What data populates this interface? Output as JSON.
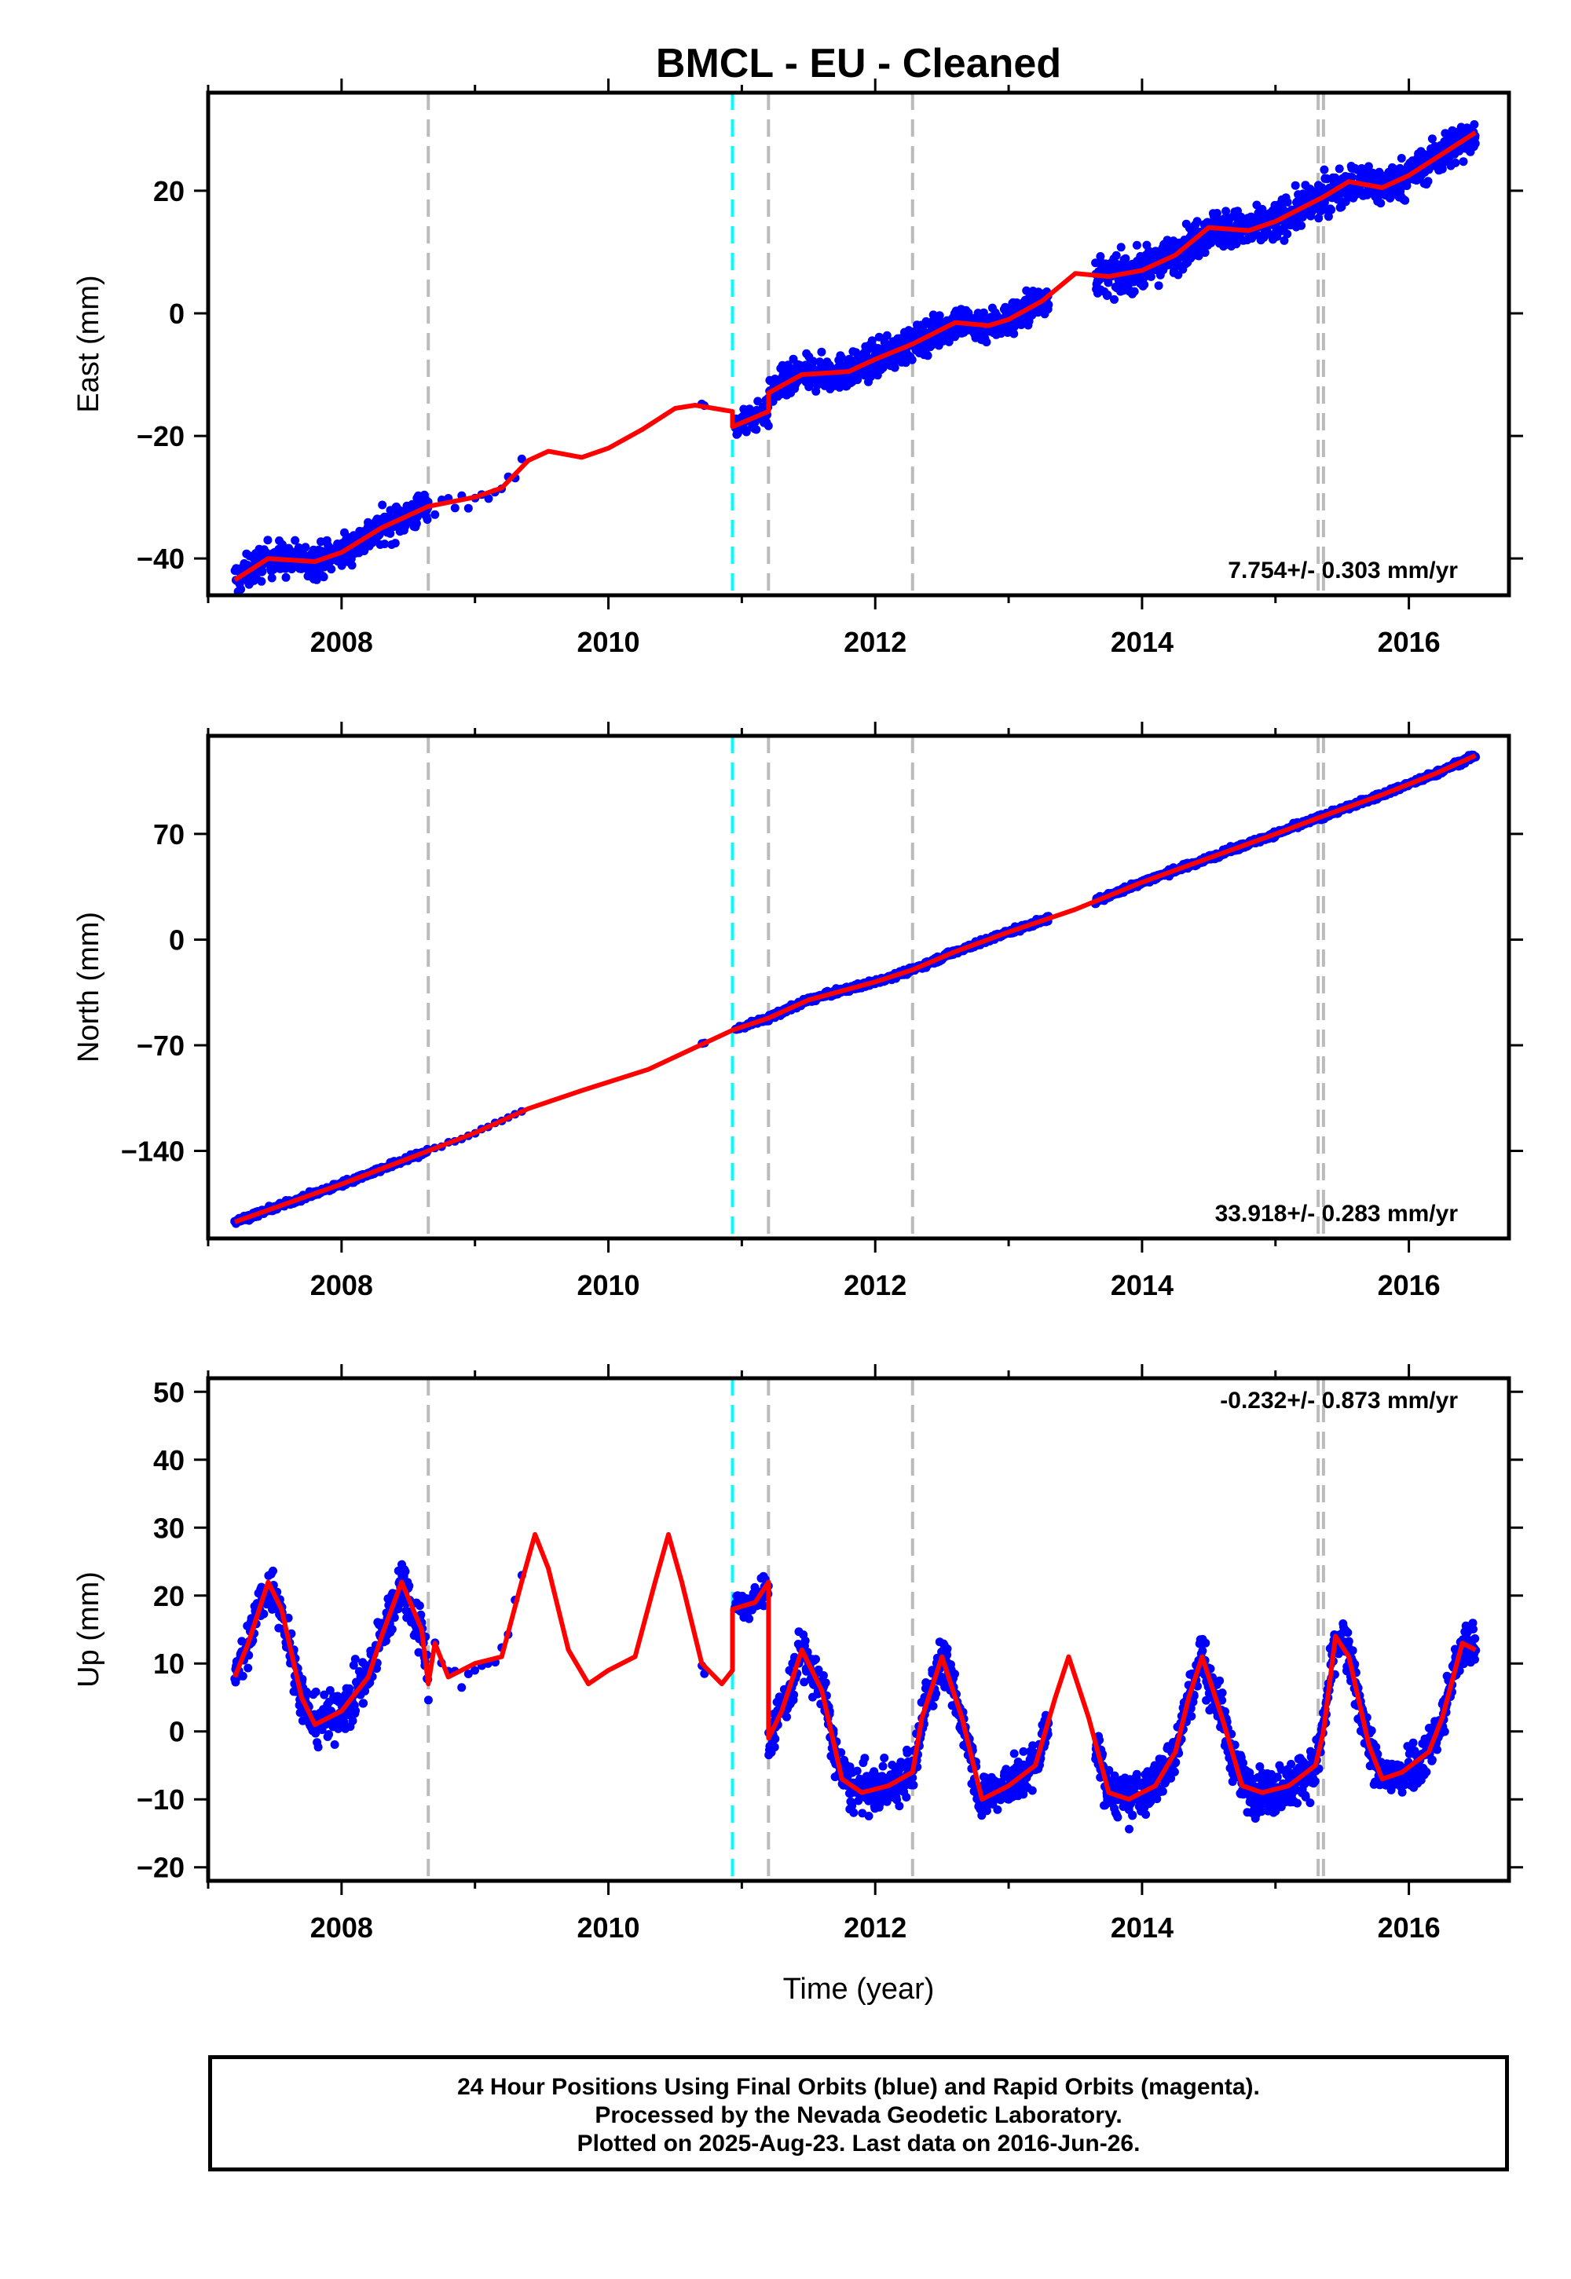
{
  "chart_data": {
    "title": "BMCL  - EU - Cleaned",
    "type": "scatter",
    "xlabel": "Time (year)",
    "xlim": [
      2007.0,
      2016.75
    ],
    "xticks": [
      2008,
      2010,
      2012,
      2014,
      2016
    ],
    "xtick_labels": [
      "2008",
      "2010",
      "2012",
      "2014",
      "2016"
    ],
    "event_lines": {
      "gray": [
        2008.65,
        2011.2,
        2012.28,
        2015.32,
        2015.36
      ],
      "cyan": [
        2010.93
      ]
    },
    "colors": {
      "final_orbits": "#0000ff",
      "model": "#ff0000",
      "equipment": "#bbbbbb",
      "earthquake": "#00ffff"
    },
    "panels": [
      {
        "name": "east",
        "ylabel": "East (mm)",
        "ylim": [
          -46,
          36
        ],
        "yticks": [
          -40,
          -20,
          0,
          20
        ],
        "ytick_labels": [
          "−40",
          "−20",
          "0",
          "20"
        ],
        "rate_label": "7.754+/- 0.303 mm/yr",
        "rate_position": "bottom-right",
        "model_line": [
          [
            2007.2,
            -43.5
          ],
          [
            2007.45,
            -40
          ],
          [
            2007.8,
            -40.5
          ],
          [
            2008.0,
            -39
          ],
          [
            2008.3,
            -35
          ],
          [
            2008.6,
            -32
          ],
          [
            2008.65,
            -31.5
          ],
          [
            2009.0,
            -30
          ],
          [
            2009.2,
            -28.5
          ],
          [
            2009.4,
            -24
          ],
          [
            2009.55,
            -22.5
          ],
          [
            2009.8,
            -23.5
          ],
          [
            2010.0,
            -22
          ],
          [
            2010.25,
            -19
          ],
          [
            2010.5,
            -15.5
          ],
          [
            2010.65,
            -15
          ],
          [
            2010.93,
            -16
          ],
          [
            2010.93,
            -18.5
          ],
          [
            2011.2,
            -16
          ],
          [
            2011.2,
            -13
          ],
          [
            2011.45,
            -10
          ],
          [
            2011.8,
            -9.5
          ],
          [
            2012.0,
            -7.5
          ],
          [
            2012.28,
            -5
          ],
          [
            2012.6,
            -1.5
          ],
          [
            2012.85,
            -2
          ],
          [
            2013.0,
            -1
          ],
          [
            2013.25,
            2
          ],
          [
            2013.5,
            6.5
          ],
          [
            2013.75,
            6
          ],
          [
            2014.0,
            7
          ],
          [
            2014.25,
            9.5
          ],
          [
            2014.5,
            14
          ],
          [
            2014.8,
            13.5
          ],
          [
            2015.0,
            15
          ],
          [
            2015.36,
            19
          ],
          [
            2015.55,
            21.5
          ],
          [
            2015.8,
            20.5
          ],
          [
            2016.0,
            22.5
          ],
          [
            2016.25,
            26
          ],
          [
            2016.5,
            29.5
          ]
        ],
        "observations": [
          {
            "start": 2007.2,
            "end": 2008.65,
            "density": 380,
            "spread": 4.5,
            "wave": 1.5
          },
          {
            "start": 2008.7,
            "end": 2009.35,
            "density": 14,
            "spread": 2.5,
            "wave": 1.0
          },
          {
            "start": 2010.7,
            "end": 2010.72,
            "density": 2,
            "spread": 1.5,
            "wave": 0
          },
          {
            "start": 2010.95,
            "end": 2011.2,
            "density": 60,
            "spread": 3.5,
            "wave": 1.0
          },
          {
            "start": 2011.2,
            "end": 2013.3,
            "density": 650,
            "spread": 4.5,
            "wave": 1.5
          },
          {
            "start": 2013.65,
            "end": 2016.5,
            "density": 900,
            "spread": 5.0,
            "wave": 1.5
          }
        ]
      },
      {
        "name": "north",
        "ylabel": "North (mm)",
        "ylim": [
          -198,
          135
        ],
        "yticks": [
          -140,
          -70,
          0,
          70
        ],
        "ytick_labels": [
          "−140",
          "−70",
          "0",
          "70"
        ],
        "rate_label": "33.918+/- 0.283 mm/yr",
        "rate_position": "bottom-right",
        "model_line": [
          [
            2007.2,
            -187
          ],
          [
            2008.0,
            -162
          ],
          [
            2008.65,
            -140
          ],
          [
            2009.0,
            -128
          ],
          [
            2009.4,
            -112
          ],
          [
            2009.8,
            -100
          ],
          [
            2010.3,
            -86
          ],
          [
            2010.93,
            -60
          ],
          [
            2011.2,
            -52
          ],
          [
            2011.5,
            -40
          ],
          [
            2012.0,
            -28
          ],
          [
            2012.28,
            -20
          ],
          [
            2012.6,
            -8
          ],
          [
            2013.0,
            5
          ],
          [
            2013.5,
            20
          ],
          [
            2014.0,
            38
          ],
          [
            2014.5,
            54
          ],
          [
            2015.0,
            70
          ],
          [
            2015.36,
            82
          ],
          [
            2015.8,
            96
          ],
          [
            2016.2,
            110
          ],
          [
            2016.5,
            122
          ]
        ],
        "observations": [
          {
            "start": 2007.2,
            "end": 2008.65,
            "density": 380,
            "spread": 3.0,
            "wave": 0.8
          },
          {
            "start": 2008.7,
            "end": 2009.35,
            "density": 14,
            "spread": 2.0,
            "wave": 0.5
          },
          {
            "start": 2010.7,
            "end": 2010.72,
            "density": 2,
            "spread": 1.5,
            "wave": 0
          },
          {
            "start": 2010.95,
            "end": 2011.2,
            "density": 60,
            "spread": 2.5,
            "wave": 0.8
          },
          {
            "start": 2011.2,
            "end": 2013.3,
            "density": 650,
            "spread": 3.0,
            "wave": 0.8
          },
          {
            "start": 2013.65,
            "end": 2016.5,
            "density": 900,
            "spread": 3.0,
            "wave": 0.8
          }
        ]
      },
      {
        "name": "up",
        "ylabel": "Up (mm)",
        "ylim": [
          -22,
          52
        ],
        "yticks": [
          -20,
          -10,
          0,
          10,
          20,
          30,
          40,
          50
        ],
        "ytick_labels": [
          "−20",
          "−10",
          "0",
          "10",
          "20",
          "30",
          "40",
          "50"
        ],
        "rate_label": "-0.232+/- 0.873 mm/yr",
        "rate_position": "top-right",
        "model_line": [
          [
            2007.2,
            8
          ],
          [
            2007.3,
            13
          ],
          [
            2007.45,
            22
          ],
          [
            2007.55,
            18
          ],
          [
            2007.7,
            5
          ],
          [
            2007.8,
            1
          ],
          [
            2008.0,
            3
          ],
          [
            2008.2,
            8
          ],
          [
            2008.3,
            14
          ],
          [
            2008.45,
            22
          ],
          [
            2008.6,
            15
          ],
          [
            2008.65,
            7
          ],
          [
            2008.7,
            13
          ],
          [
            2008.8,
            8
          ],
          [
            2009.0,
            10
          ],
          [
            2009.2,
            11
          ],
          [
            2009.35,
            22
          ],
          [
            2009.45,
            29
          ],
          [
            2009.55,
            24
          ],
          [
            2009.7,
            12
          ],
          [
            2009.85,
            7
          ],
          [
            2010.0,
            9
          ],
          [
            2010.2,
            11
          ],
          [
            2010.35,
            22
          ],
          [
            2010.45,
            29
          ],
          [
            2010.55,
            22
          ],
          [
            2010.7,
            10
          ],
          [
            2010.85,
            7
          ],
          [
            2010.93,
            9
          ],
          [
            2010.93,
            18
          ],
          [
            2011.1,
            19
          ],
          [
            2011.2,
            22
          ],
          [
            2011.2,
            -1
          ],
          [
            2011.3,
            3
          ],
          [
            2011.45,
            12
          ],
          [
            2011.6,
            6
          ],
          [
            2011.75,
            -7
          ],
          [
            2011.9,
            -9
          ],
          [
            2012.1,
            -8
          ],
          [
            2012.28,
            -6
          ],
          [
            2012.35,
            2
          ],
          [
            2012.5,
            11
          ],
          [
            2012.65,
            2
          ],
          [
            2012.8,
            -10
          ],
          [
            2013.0,
            -8
          ],
          [
            2013.2,
            -5
          ],
          [
            2013.35,
            5
          ],
          [
            2013.45,
            11
          ],
          [
            2013.6,
            2
          ],
          [
            2013.75,
            -9
          ],
          [
            2013.9,
            -10
          ],
          [
            2014.1,
            -8
          ],
          [
            2014.25,
            -3
          ],
          [
            2014.35,
            5
          ],
          [
            2014.45,
            11
          ],
          [
            2014.6,
            2
          ],
          [
            2014.75,
            -8
          ],
          [
            2014.9,
            -9
          ],
          [
            2015.1,
            -8
          ],
          [
            2015.3,
            -5
          ],
          [
            2015.36,
            0
          ],
          [
            2015.45,
            14
          ],
          [
            2015.55,
            11
          ],
          [
            2015.7,
            -2
          ],
          [
            2015.8,
            -7
          ],
          [
            2015.95,
            -6
          ],
          [
            2016.15,
            -3
          ],
          [
            2016.25,
            2
          ],
          [
            2016.4,
            13
          ],
          [
            2016.5,
            12
          ]
        ],
        "observations": [
          {
            "start": 2007.2,
            "end": 2008.65,
            "density": 380,
            "spread": 6.0,
            "wave": 11
          },
          {
            "start": 2008.7,
            "end": 2009.35,
            "density": 14,
            "spread": 4.0,
            "wave": 3
          },
          {
            "start": 2010.7,
            "end": 2010.72,
            "density": 2,
            "spread": 3.0,
            "wave": 0
          },
          {
            "start": 2010.95,
            "end": 2011.2,
            "density": 60,
            "spread": 3.5,
            "wave": 2
          },
          {
            "start": 2011.2,
            "end": 2013.3,
            "density": 650,
            "spread": 5.5,
            "wave": 10
          },
          {
            "start": 2013.65,
            "end": 2016.5,
            "density": 900,
            "spread": 5.5,
            "wave": 10
          }
        ]
      }
    ]
  },
  "footer": {
    "line1": "24 Hour Positions Using Final Orbits (blue) and Rapid Orbits (magenta).",
    "line2": "Processed by the Nevada Geodetic Laboratory.",
    "line3": "Plotted on 2025-Aug-23. Last data on 2016-Jun-26."
  }
}
